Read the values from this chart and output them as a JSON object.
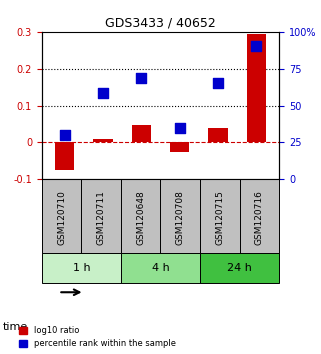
{
  "title": "GDS3433 / 40652",
  "samples": [
    "GSM120710",
    "GSM120711",
    "GSM120648",
    "GSM120708",
    "GSM120715",
    "GSM120716"
  ],
  "log10_ratio": [
    -0.075,
    0.01,
    0.047,
    -0.025,
    0.038,
    0.295
  ],
  "percentile_rank": [
    0.02,
    0.135,
    0.175,
    0.038,
    0.16,
    0.262
  ],
  "time_groups": [
    {
      "label": "1 h",
      "spans": [
        0,
        2
      ],
      "color": "#c8f0c8"
    },
    {
      "label": "4 h",
      "spans": [
        2,
        4
      ],
      "color": "#90e090"
    },
    {
      "label": "24 h",
      "spans": [
        4,
        6
      ],
      "color": "#40c040"
    }
  ],
  "bar_color": "#cc0000",
  "square_color": "#0000cc",
  "ylim_left": [
    -0.1,
    0.3
  ],
  "ylim_right": [
    0,
    100
  ],
  "yticks_left": [
    -0.1,
    0.0,
    0.1,
    0.2,
    0.3
  ],
  "yticks_right": [
    0,
    25,
    50,
    75,
    100
  ],
  "ytick_labels_left": [
    "-0.1",
    "0",
    "0.1",
    "0.2",
    "0.3"
  ],
  "ytick_labels_right": [
    "0",
    "25",
    "50",
    "75",
    "100%"
  ],
  "hlines": [
    0.1,
    0.2
  ],
  "zero_line_color": "#cc0000",
  "bg_color": "#ffffff",
  "plot_bg": "#ffffff",
  "bar_width": 0.5,
  "square_size": 55,
  "legend_red": "log10 ratio",
  "legend_blue": "percentile rank within the sample",
  "time_label": "time",
  "header_bg": "#c0c0c0"
}
